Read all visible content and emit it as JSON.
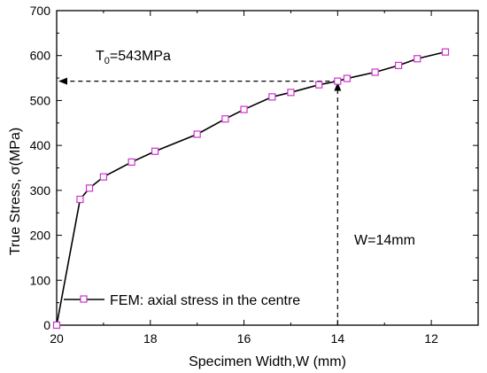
{
  "chart_data": {
    "type": "line",
    "xlabel": "Specimen Width,W (mm)",
    "ylabel": "True Stress, σ(MPa)",
    "xlim": [
      20,
      11
    ],
    "ylim": [
      0,
      700
    ],
    "x_reversed": true,
    "x_ticks": [
      20,
      18,
      16,
      14,
      12
    ],
    "y_ticks": [
      0,
      100,
      200,
      300,
      400,
      500,
      600,
      700
    ],
    "grid": false,
    "legend_position": "bottom-left",
    "series": [
      {
        "name": "FEM: axial stress in the centre",
        "line_color": "#000000",
        "marker": "square",
        "marker_color": "#cc33cc",
        "x": [
          20.0,
          19.5,
          19.3,
          19.0,
          18.4,
          17.9,
          17.0,
          16.4,
          16.0,
          15.4,
          15.0,
          14.4,
          14.0,
          13.8,
          13.2,
          12.7,
          12.3,
          11.7
        ],
        "y": [
          0,
          280,
          305,
          330,
          363,
          387,
          425,
          459,
          480,
          508,
          518,
          535,
          543,
          549,
          563,
          578,
          593,
          608
        ]
      }
    ],
    "annotations": {
      "t0": {
        "main": "T",
        "sub": "0",
        "rest": "=543MPa",
        "value": 543,
        "arrow_to": "y-axis",
        "style": "dashed"
      },
      "w": {
        "label": "W=14mm",
        "value": 14,
        "arrow_from": "x-axis",
        "style": "dashed"
      }
    }
  }
}
